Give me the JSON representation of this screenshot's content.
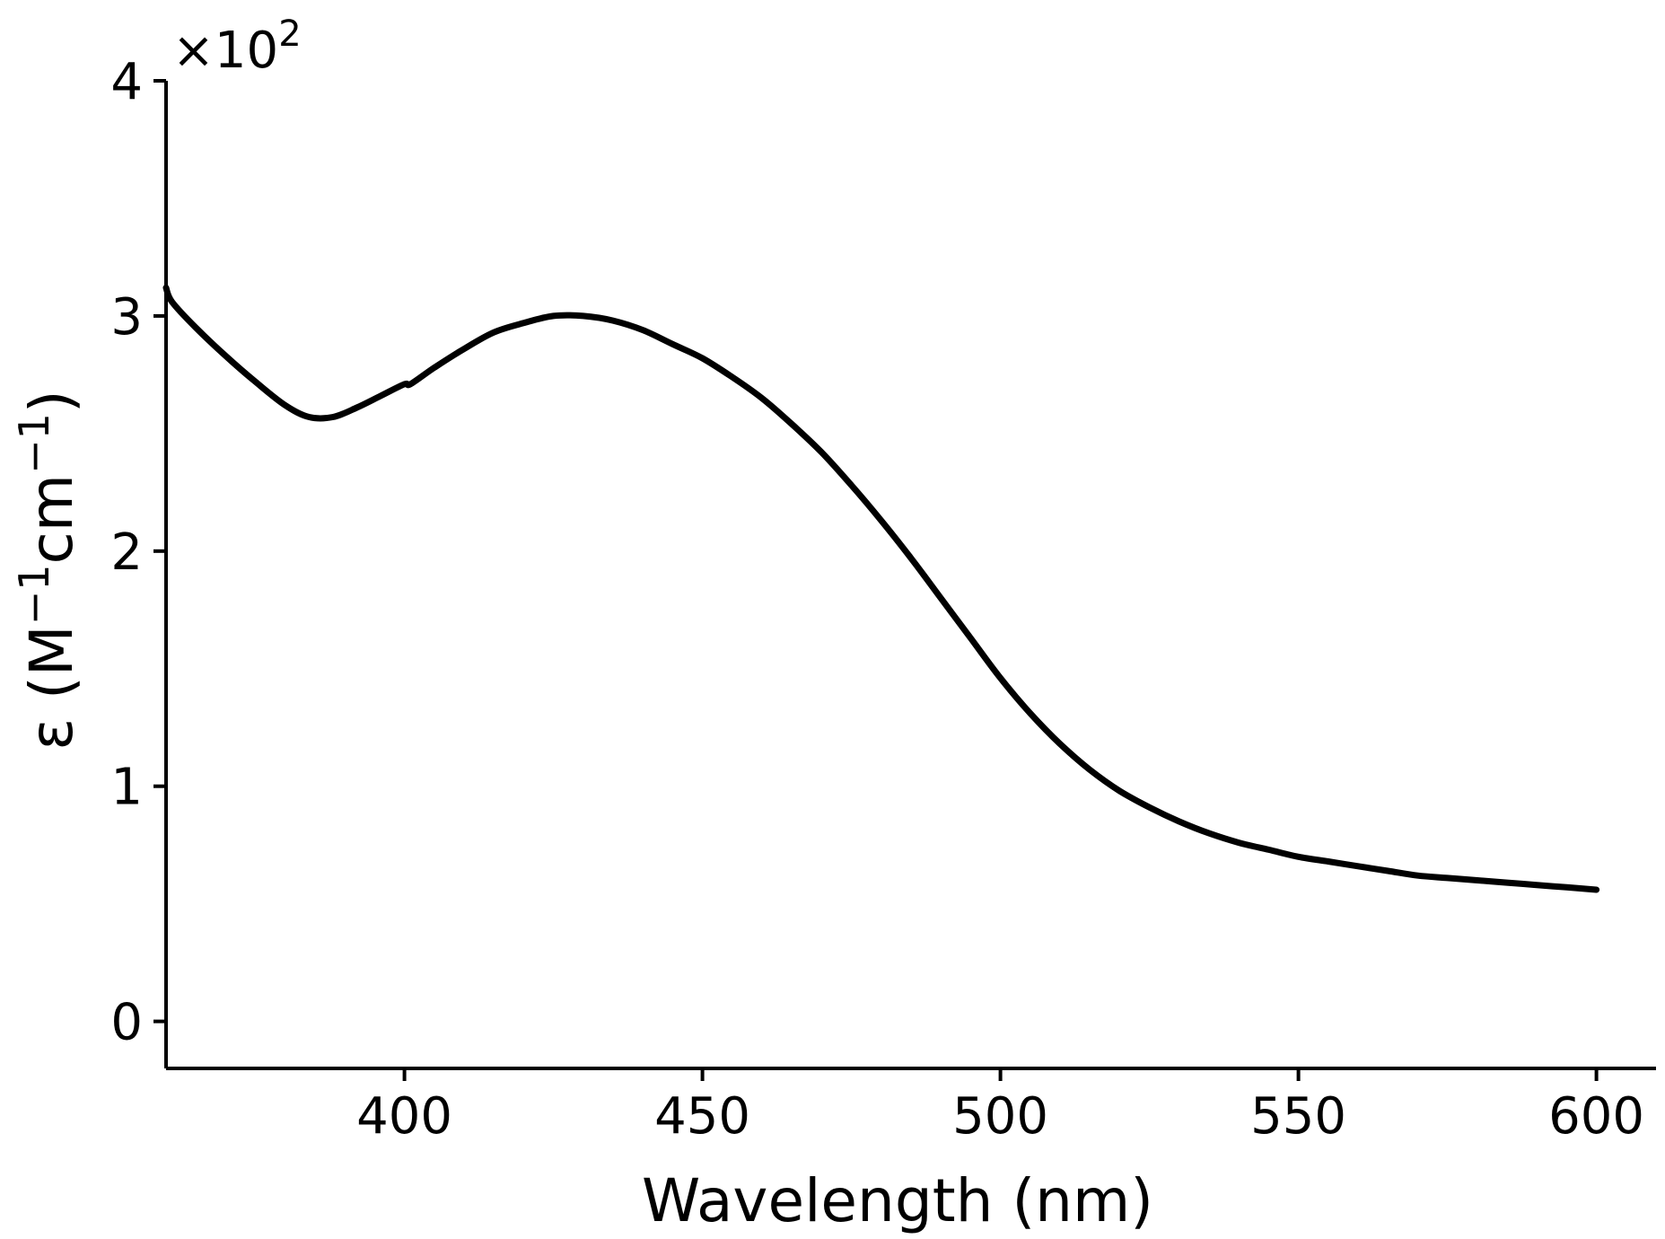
{
  "chart_data": {
    "type": "line",
    "title": "",
    "xlabel": "Wavelength (nm)",
    "ylabel_prefix": "ε (M",
    "ylabel_exp1": "−1",
    "ylabel_mid": "cm",
    "ylabel_exp2": "−1",
    "ylabel_suffix": ")",
    "scale_base": "×10",
    "scale_exp": "2",
    "xlim": [
      360,
      610
    ],
    "ylim": [
      -0.2,
      4.0
    ],
    "xticks": [
      400,
      450,
      500,
      550,
      600
    ],
    "xtick_labels": [
      "400",
      "450",
      "500",
      "550",
      "600"
    ],
    "yticks": [
      0,
      1,
      2,
      3,
      4
    ],
    "ytick_labels": [
      "0",
      "1",
      "2",
      "3",
      "4"
    ],
    "grid": false,
    "series": [
      {
        "name": "epsilon",
        "color": "#000000",
        "x": [
          360,
          361,
          365,
          370,
          375,
          380,
          384,
          388,
          392,
          396,
          400,
          401,
          405,
          410,
          415,
          420,
          425,
          430,
          435,
          440,
          445,
          450,
          455,
          460,
          465,
          470,
          475,
          480,
          485,
          490,
          495,
          500,
          505,
          510,
          515,
          520,
          525,
          530,
          535,
          540,
          545,
          550,
          555,
          560,
          565,
          570,
          575,
          580,
          585,
          590,
          595,
          600
        ],
        "y": [
          3.12,
          3.06,
          2.95,
          2.83,
          2.72,
          2.62,
          2.57,
          2.57,
          2.61,
          2.66,
          2.71,
          2.71,
          2.78,
          2.86,
          2.93,
          2.97,
          3.0,
          3.0,
          2.98,
          2.94,
          2.88,
          2.82,
          2.74,
          2.65,
          2.54,
          2.42,
          2.28,
          2.13,
          1.97,
          1.8,
          1.63,
          1.46,
          1.31,
          1.18,
          1.07,
          0.98,
          0.91,
          0.85,
          0.8,
          0.76,
          0.73,
          0.7,
          0.68,
          0.66,
          0.64,
          0.62,
          0.61,
          0.6,
          0.59,
          0.58,
          0.57,
          0.56
        ]
      }
    ]
  }
}
